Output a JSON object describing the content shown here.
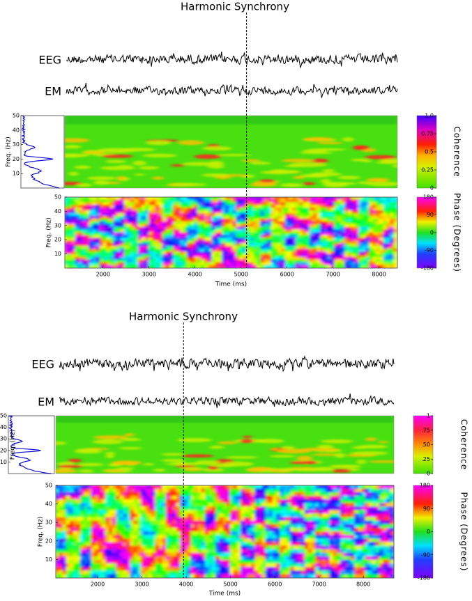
{
  "panels": [
    {
      "title": "Harmonic Synchrony",
      "traces": [
        "EEG",
        "EM"
      ],
      "coherence": {
        "ylabel": "Freq. (Hz)",
        "ylim": [
          0,
          50
        ],
        "yticks": [
          10,
          20,
          30,
          40,
          50
        ],
        "colorbar_label": "Coherence",
        "colorbar_lim": [
          0,
          1
        ],
        "colorbar_ticks": [
          0,
          0.25,
          0.5,
          0.75,
          {
            "value": 1,
            "label": "1.0"
          }
        ]
      },
      "phase": {
        "ylabel": "Freq. (Hz)",
        "ylim": [
          0,
          50
        ],
        "yticks": [
          10,
          20,
          30,
          40,
          50
        ],
        "xlabel": "Time (ms)",
        "xlim": [
          1170,
          8400
        ],
        "xticks": [
          2000,
          3000,
          4000,
          5000,
          6000,
          7000,
          8000
        ],
        "colorbar_label": "Phase (Degrees)",
        "colorbar_lim": [
          -180,
          180
        ],
        "colorbar_ticks": [
          -180,
          -90,
          0,
          90,
          180
        ]
      },
      "marker_time": 5120
    },
    {
      "title": "Harmonic Synchrony",
      "traces": [
        "EEG",
        "EM"
      ],
      "coherence": {
        "ylabel": "Freq. (Hz)",
        "ylim": [
          0,
          50
        ],
        "yticks": [
          10,
          20,
          30,
          40,
          50
        ],
        "colorbar_label": "Coherence",
        "colorbar_lim": [
          0,
          1
        ],
        "colorbar_ticks": [
          0,
          {
            "value": 0.25,
            "label": ".25"
          },
          {
            "value": 0.5,
            "label": ".50"
          },
          {
            "value": 0.75,
            "label": ".75"
          },
          1
        ]
      },
      "phase": {
        "ylabel": "Freq. (Hz)",
        "ylim": [
          0,
          50
        ],
        "yticks": [
          10,
          20,
          30,
          40,
          50
        ],
        "xlabel": "Time (ms)",
        "xlim": [
          1055,
          8690
        ],
        "xticks": [
          2000,
          3000,
          4000,
          5000,
          6000,
          7000,
          8000
        ],
        "colorbar_label": "Phase (Degrees)",
        "colorbar_lim": [
          -180,
          180
        ],
        "colorbar_ticks": [
          -180,
          -90,
          0,
          90,
          180
        ]
      },
      "marker_time": 3940
    }
  ]
}
